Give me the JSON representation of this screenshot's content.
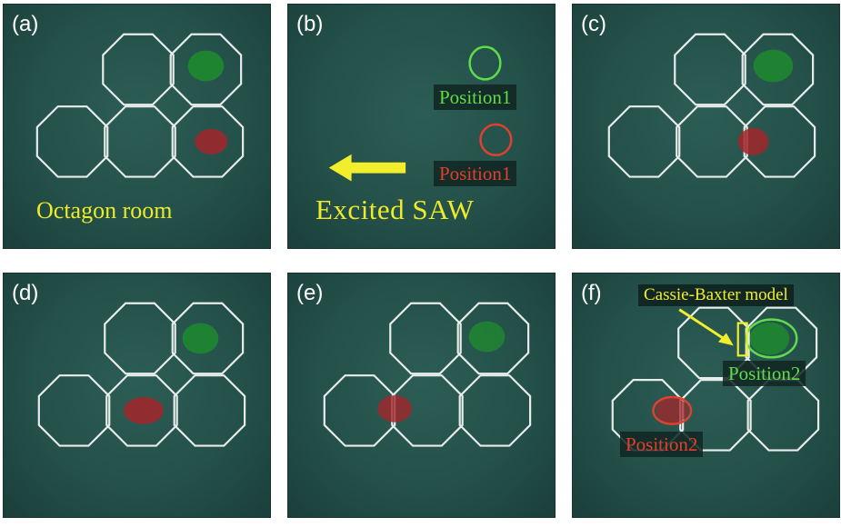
{
  "panels": {
    "a": {
      "label": "(a)",
      "caption": "Octagon room"
    },
    "b": {
      "label": "(b)",
      "green_position": "Position1",
      "red_position": "Position1",
      "arrow_caption": "Excited  SAW"
    },
    "c": {
      "label": "(c)"
    },
    "d": {
      "label": "(d)"
    },
    "e": {
      "label": "(e)"
    },
    "f": {
      "label": "(f)",
      "model_label": "Cassie-Baxter model",
      "green_position": "Position2",
      "red_position": "Position2"
    }
  },
  "colors": {
    "green_droplet": "#1f8a2e",
    "red_droplet": "#a3262a",
    "label_green": "#5fdc4a",
    "label_red": "#e0402e",
    "annotation_yellow": "#f2ee2c",
    "grid_white": "#e8ecea"
  }
}
